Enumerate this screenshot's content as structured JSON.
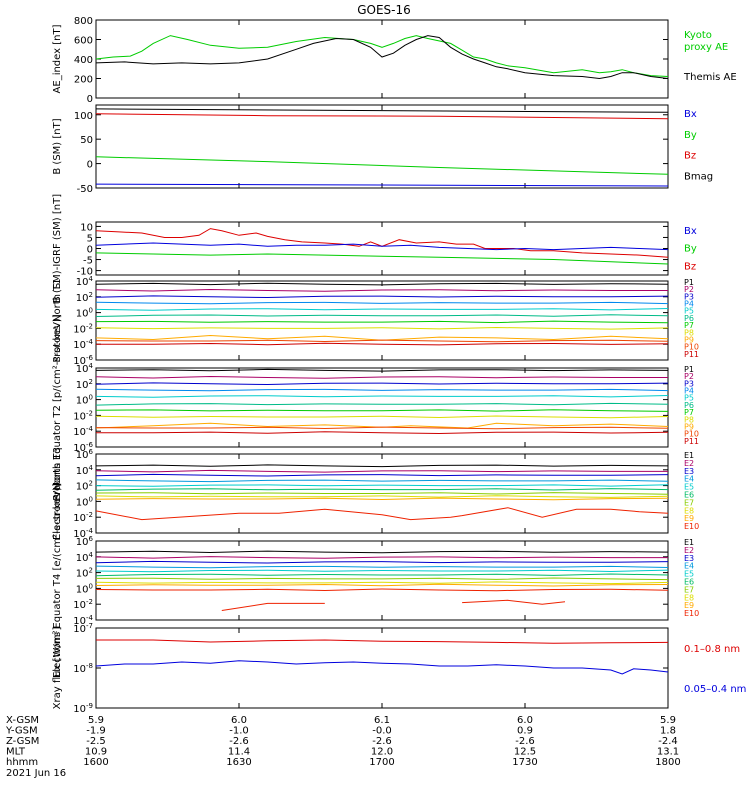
{
  "title": "GOES-16",
  "colors": {
    "black": "#000000",
    "red": "#dd0000",
    "green": "#00cc00",
    "blue": "#0000dd",
    "p": [
      "#000000",
      "#aa0066",
      "#0000cc",
      "#0088ee",
      "#00cccc",
      "#00bb88",
      "#00cc00",
      "#dddd00",
      "#ffaa00",
      "#ee4400",
      "#cc0000"
    ],
    "e": [
      "#000000",
      "#aa0066",
      "#0000cc",
      "#0099dd",
      "#00cccc",
      "#00bb66",
      "#88cc00",
      "#dddd00",
      "#ffaa00",
      "#ee2200",
      "#cc0000"
    ]
  },
  "chart_data": [
    {
      "id": "ae",
      "type": "line",
      "ylabel": "AE_index [nT]",
      "ylim": [
        0,
        800
      ],
      "yticks": [
        "800",
        "600",
        "400",
        "200",
        "0"
      ],
      "legend": [
        {
          "label": "Kyoto",
          "color": "green"
        },
        {
          "label": "proxy AE",
          "color": "green"
        },
        {
          "label": "Themis AE",
          "color": "black"
        }
      ],
      "series": [
        {
          "name": "Kyoto proxy AE",
          "color": "green",
          "x": [
            0,
            0.03,
            0.06,
            0.08,
            0.1,
            0.13,
            0.16,
            0.2,
            0.25,
            0.3,
            0.35,
            0.4,
            0.45,
            0.48,
            0.5,
            0.52,
            0.54,
            0.56,
            0.58,
            0.62,
            0.64,
            0.66,
            0.68,
            0.7,
            0.72,
            0.75,
            0.8,
            0.85,
            0.88,
            0.9,
            0.92,
            0.94,
            0.97,
            1.0
          ],
          "y": [
            400,
            420,
            430,
            480,
            560,
            640,
            600,
            540,
            510,
            520,
            580,
            620,
            600,
            560,
            520,
            560,
            610,
            640,
            610,
            560,
            490,
            420,
            400,
            360,
            330,
            310,
            260,
            290,
            260,
            270,
            290,
            260,
            230,
            220
          ]
        },
        {
          "name": "Themis AE",
          "color": "black",
          "x": [
            0,
            0.05,
            0.1,
            0.15,
            0.2,
            0.25,
            0.3,
            0.35,
            0.38,
            0.42,
            0.45,
            0.48,
            0.5,
            0.52,
            0.54,
            0.56,
            0.58,
            0.6,
            0.62,
            0.64,
            0.66,
            0.68,
            0.7,
            0.72,
            0.75,
            0.8,
            0.85,
            0.88,
            0.9,
            0.92,
            0.94,
            0.97,
            1.0
          ],
          "y": [
            360,
            370,
            350,
            360,
            350,
            360,
            400,
            500,
            560,
            610,
            600,
            520,
            420,
            460,
            540,
            600,
            640,
            620,
            520,
            450,
            400,
            360,
            320,
            300,
            260,
            230,
            220,
            200,
            220,
            260,
            260,
            220,
            200
          ]
        }
      ]
    },
    {
      "id": "bsm",
      "type": "line",
      "ylabel": "B (SM) [nT]",
      "ylim": [
        -50,
        120
      ],
      "yticks": [
        "100",
        "50",
        "0",
        "-50"
      ],
      "yticks_values": [
        100,
        50,
        0,
        -50
      ],
      "legend": [
        {
          "label": "Bx",
          "color": "blue"
        },
        {
          "label": "By",
          "color": "green"
        },
        {
          "label": "Bz",
          "color": "red"
        },
        {
          "label": "Bmag",
          "color": "black"
        }
      ],
      "series": [
        {
          "name": "Bmag",
          "color": "black",
          "x": [
            0,
            1
          ],
          "y": [
            112,
            105
          ]
        },
        {
          "name": "Bz",
          "color": "red",
          "x": [
            0,
            0.3,
            0.6,
            1
          ],
          "y": [
            102,
            98,
            97,
            92
          ]
        },
        {
          "name": "By",
          "color": "green",
          "x": [
            0,
            0.3,
            0.6,
            1
          ],
          "y": [
            14,
            4,
            -8,
            -22
          ]
        },
        {
          "name": "Bx",
          "color": "blue",
          "x": [
            0,
            1
          ],
          "y": [
            -42,
            -46
          ]
        }
      ]
    },
    {
      "id": "bigrf",
      "type": "line",
      "ylabel": "B (SM)-IGRF (SM) [nT]",
      "ylim": [
        -12,
        12
      ],
      "yticks": [
        "10",
        "5",
        "0",
        "-5",
        "-10"
      ],
      "yticks_values": [
        10,
        5,
        0,
        -5,
        -10
      ],
      "legend": [
        {
          "label": "Bx",
          "color": "blue"
        },
        {
          "label": "By",
          "color": "green"
        },
        {
          "label": "Bz",
          "color": "red"
        }
      ],
      "series": [
        {
          "name": "Bz",
          "color": "red",
          "x": [
            0,
            0.04,
            0.08,
            0.12,
            0.15,
            0.18,
            0.2,
            0.22,
            0.25,
            0.28,
            0.3,
            0.33,
            0.36,
            0.4,
            0.43,
            0.46,
            0.48,
            0.5,
            0.53,
            0.56,
            0.6,
            0.63,
            0.66,
            0.68,
            0.7,
            0.73,
            0.76,
            0.8,
            0.85,
            0.9,
            0.95,
            1.0
          ],
          "y": [
            8,
            7.5,
            7,
            5,
            5,
            6,
            9,
            8,
            6,
            7,
            5.5,
            4,
            3,
            2.5,
            2,
            1,
            3,
            1,
            4,
            2.5,
            3,
            2,
            2,
            0,
            0,
            0,
            -1,
            -1,
            -2,
            -2.5,
            -3,
            -4
          ]
        },
        {
          "name": "Bx",
          "color": "blue",
          "x": [
            0,
            0.05,
            0.1,
            0.15,
            0.2,
            0.25,
            0.3,
            0.35,
            0.4,
            0.45,
            0.5,
            0.55,
            0.6,
            0.65,
            0.7,
            0.75,
            0.8,
            0.85,
            0.9,
            0.95,
            1.0
          ],
          "y": [
            1.5,
            2,
            2.5,
            2,
            1.5,
            2,
            1,
            1.5,
            1.5,
            2,
            1,
            1.5,
            0.5,
            0,
            -0.5,
            0,
            -0.5,
            0,
            0.5,
            0,
            -0.5
          ]
        },
        {
          "name": "By",
          "color": "green",
          "x": [
            0,
            0.1,
            0.2,
            0.3,
            0.4,
            0.5,
            0.6,
            0.7,
            0.8,
            0.9,
            1.0
          ],
          "y": [
            -2,
            -2.5,
            -3,
            -2.5,
            -3,
            -3.5,
            -4,
            -4.5,
            -5,
            -6,
            -7
          ]
        }
      ]
    },
    {
      "id": "pn",
      "type": "line",
      "log": true,
      "ylabel": "Protons North T1",
      "ylim": [
        -6,
        4
      ],
      "yticks": [
        "10^4",
        "10^2",
        "10^0",
        "10^-2",
        "10^-4",
        "10^-6"
      ],
      "yticks_values": [
        4,
        2,
        0,
        -2,
        -4,
        -6
      ],
      "legend": [
        "P1",
        "P2",
        "P3",
        "P4",
        "P5",
        "P6",
        "P7",
        "P8",
        "P9",
        "P10",
        "P11"
      ],
      "levels": [
        3.6,
        2.8,
        2.0,
        1.2,
        0.4,
        -0.4,
        -1.2,
        -2.0,
        -3.2,
        -3.6,
        -4.0
      ],
      "p9": {
        "x": [
          0.0,
          0.1,
          0.2,
          0.3,
          0.4,
          0.5,
          0.6,
          0.7,
          0.8,
          0.9,
          1.0
        ],
        "y": [
          -3.2,
          -3.4,
          -2.9,
          -3.3,
          -3.0,
          -3.5,
          -3.1,
          -3.2,
          -3.4,
          -3.0,
          -3.3
        ]
      }
    },
    {
      "id": "pe",
      "type": "line",
      "log": true,
      "ylabel": "Protons Equator T2 [p/(cm²-s-sr-keV)]",
      "ylim": [
        -6,
        4
      ],
      "yticks": [
        "10^4",
        "10^2",
        "10^0",
        "10^-2",
        "10^-4",
        "10^-6"
      ],
      "yticks_values": [
        4,
        2,
        0,
        -2,
        -4,
        -6
      ],
      "legend": [
        "P1",
        "P2",
        "P3",
        "P4",
        "P5",
        "P6",
        "P7",
        "P8",
        "P9",
        "P10",
        "P11"
      ],
      "levels": [
        3.7,
        2.8,
        2.0,
        1.2,
        0.4,
        -0.6,
        -1.4,
        -2.2,
        -3.0,
        -3.6,
        -4.2
      ],
      "p9": {
        "x": [
          0,
          0.1,
          0.2,
          0.3,
          0.4,
          0.5,
          0.55,
          0.65,
          0.7,
          0.8,
          0.9,
          1.0
        ],
        "y": [
          -3.6,
          -3.3,
          -3.0,
          -3.4,
          -3.2,
          -3.5,
          -3.3,
          -3.6,
          -3.0,
          -3.3,
          -3.1,
          -3.4
        ]
      }
    },
    {
      "id": "en",
      "type": "line",
      "log": true,
      "ylabel": "Electrons North T3",
      "ylim": [
        -4,
        6
      ],
      "yticks": [
        "10^6",
        "10^4",
        "10^2",
        "10^0",
        "10^-2",
        "10^-4"
      ],
      "yticks_values": [
        6,
        4,
        2,
        0,
        -2,
        -4
      ],
      "legend": [
        "E1",
        "E2",
        "E3",
        "E4",
        "E5",
        "E6",
        "E7",
        "E8",
        "E9",
        "E10"
      ],
      "levels": [
        4.5,
        3.8,
        3.3,
        2.6,
        2.0,
        1.5,
        1.0,
        0.6,
        0.3,
        0.0
      ],
      "e9": {
        "x": [
          0,
          0.08,
          0.25,
          0.32,
          0.4,
          0.5,
          0.55,
          0.62,
          0.64,
          0.72,
          0.78,
          0.84,
          0.9,
          0.95,
          1.0
        ],
        "y": [
          -1.2,
          -2.3,
          -1.5,
          -1.5,
          -1.0,
          -1.7,
          -2.3,
          -2.0,
          -1.8,
          -0.8,
          -2.0,
          -1.0,
          -1.0,
          -1.3,
          -1.5
        ]
      }
    },
    {
      "id": "ee",
      "type": "line",
      "log": true,
      "ylabel": "Electrons Equator T4 [e/(cm²-s-sr-keV)]",
      "ylim": [
        -4,
        6
      ],
      "yticks": [
        "10^6",
        "10^4",
        "10^2",
        "10^0",
        "10^-2",
        "10^-4"
      ],
      "yticks_values": [
        6,
        4,
        2,
        0,
        -2,
        -4
      ],
      "legend": [
        "E1",
        "E2",
        "E3",
        "E4",
        "E5",
        "E6",
        "E7",
        "E8",
        "E9",
        "E10"
      ],
      "levels": [
        4.6,
        3.9,
        3.3,
        2.7,
        2.2,
        1.7,
        1.2,
        0.7,
        0.4,
        -0.2
      ],
      "e9": {
        "x": [
          0,
          0.1,
          0.2,
          0.25,
          0.3,
          0.36,
          0.4,
          0.46,
          0.5,
          0.56,
          0.6,
          0.68,
          0.75,
          0.82,
          0.88,
          0.94,
          1.0
        ],
        "y": [
          0.4,
          0.2,
          0.3,
          0.1,
          0.2,
          0.2,
          0.3,
          0.2,
          0.3,
          0.1,
          0.2,
          0.1,
          0.2,
          0.1,
          0.2,
          0.2,
          0.3
        ]
      },
      "e10": [
        {
          "x": [
            0.22,
            0.3,
            0.4
          ],
          "y": [
            -2.8,
            -1.9,
            -1.9
          ]
        },
        {
          "x": [
            0.64,
            0.72,
            0.78,
            0.82
          ],
          "y": [
            -1.8,
            -1.5,
            -2.0,
            -1.7
          ]
        }
      ]
    },
    {
      "id": "xray",
      "type": "line",
      "log": true,
      "ylabel": "Xray flux [W/m²]",
      "ylim": [
        -9,
        -7
      ],
      "yticks": [
        "10^-7",
        "10^-8",
        "10^-9"
      ],
      "yticks_values": [
        -7,
        -8,
        -9
      ],
      "legend": [
        {
          "label": "0.1–0.8 nm",
          "color": "red"
        },
        {
          "label": "0.05–0.4 nm",
          "color": "blue"
        }
      ],
      "series": [
        {
          "name": "0.1–0.8 nm",
          "color": "red",
          "x": [
            0,
            0.1,
            0.2,
            0.3,
            0.4,
            0.5,
            0.6,
            0.7,
            0.8,
            0.9,
            1.0
          ],
          "y": [
            -7.3,
            -7.3,
            -7.35,
            -7.32,
            -7.3,
            -7.33,
            -7.34,
            -7.36,
            -7.38,
            -7.37,
            -7.36
          ]
        },
        {
          "name": "0.05–0.4 nm",
          "color": "blue",
          "x": [
            0,
            0.05,
            0.1,
            0.15,
            0.2,
            0.25,
            0.3,
            0.35,
            0.4,
            0.45,
            0.5,
            0.55,
            0.6,
            0.65,
            0.7,
            0.75,
            0.8,
            0.85,
            0.9,
            0.92,
            0.94,
            0.97,
            1.0
          ],
          "y": [
            -7.95,
            -7.9,
            -7.9,
            -7.85,
            -7.88,
            -7.82,
            -7.85,
            -7.9,
            -7.87,
            -7.85,
            -7.88,
            -7.9,
            -7.95,
            -7.95,
            -7.92,
            -7.95,
            -8.0,
            -8.0,
            -8.05,
            -8.15,
            -8.02,
            -8.05,
            -8.1
          ]
        }
      ]
    }
  ],
  "xaxis": {
    "rows": [
      {
        "label": "X-GSM",
        "values": [
          "5.9",
          "6.0",
          "6.1",
          "6.0",
          "5.9"
        ]
      },
      {
        "label": "Y-GSM",
        "values": [
          "-1.9",
          "-1.0",
          "-0.0",
          "0.9",
          "1.8"
        ]
      },
      {
        "label": "Z-GSM",
        "values": [
          "-2.5",
          "-2.6",
          "-2.6",
          "-2.6",
          "-2.4"
        ]
      },
      {
        "label": "MLT",
        "values": [
          "10.9",
          "11.4",
          "12.0",
          "12.5",
          "13.1"
        ]
      },
      {
        "label": "hhmm",
        "values": [
          "1600",
          "1630",
          "1700",
          "1730",
          "1800"
        ]
      }
    ],
    "date": "2021 Jun 16"
  }
}
